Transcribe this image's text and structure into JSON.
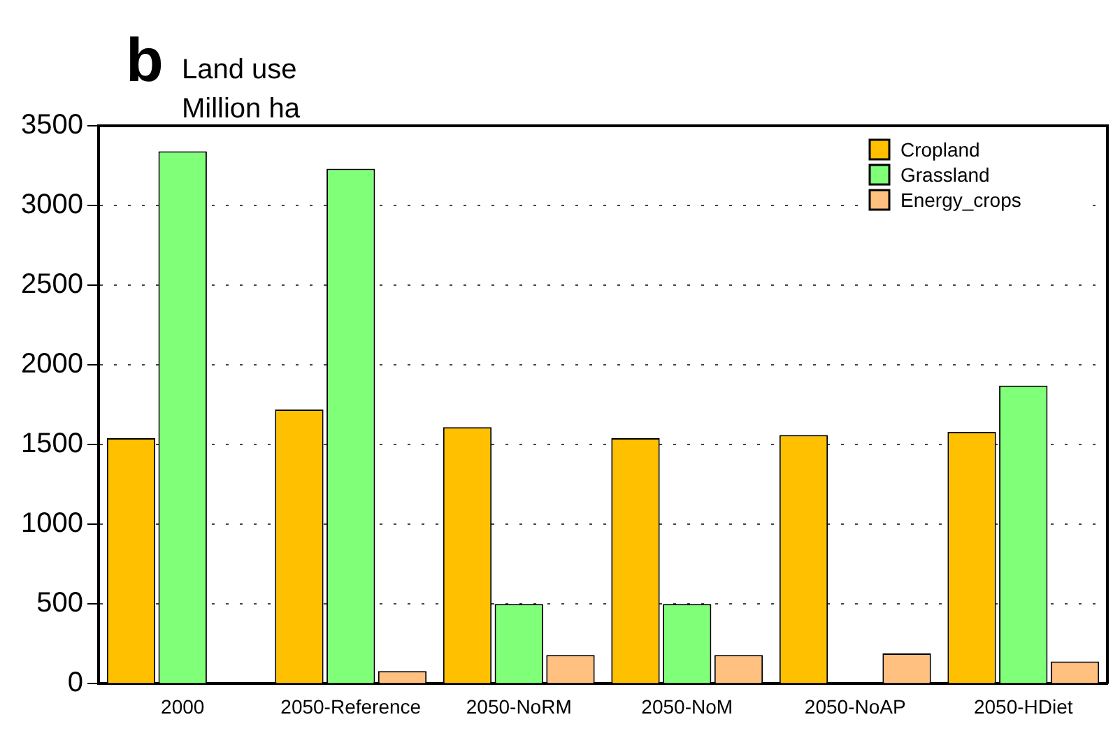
{
  "chart_data": {
    "type": "bar",
    "title": "b",
    "ylabel": "Land use\nMillion ha",
    "categories": [
      "2000",
      "2050-Reference",
      "2050-NoRM",
      "2050-NoM",
      "2050-NoAP",
      "2050-HDiet"
    ],
    "series": [
      {
        "name": "Cropland",
        "color": "#ffc000",
        "values": [
          1540,
          1720,
          1610,
          1540,
          1560,
          1580
        ]
      },
      {
        "name": "Grassland",
        "color": "#80ff78",
        "values": [
          3340,
          3230,
          500,
          500,
          null,
          1870
        ]
      },
      {
        "name": "Energy_crops",
        "color": "#ffc080",
        "values": [
          0,
          80,
          180,
          180,
          190,
          140
        ]
      }
    ],
    "ylim": [
      0,
      3500
    ],
    "yticks": [
      0,
      500,
      1000,
      1500,
      2000,
      2500,
      3000,
      3500
    ],
    "grid": "y",
    "legend": "top right"
  }
}
